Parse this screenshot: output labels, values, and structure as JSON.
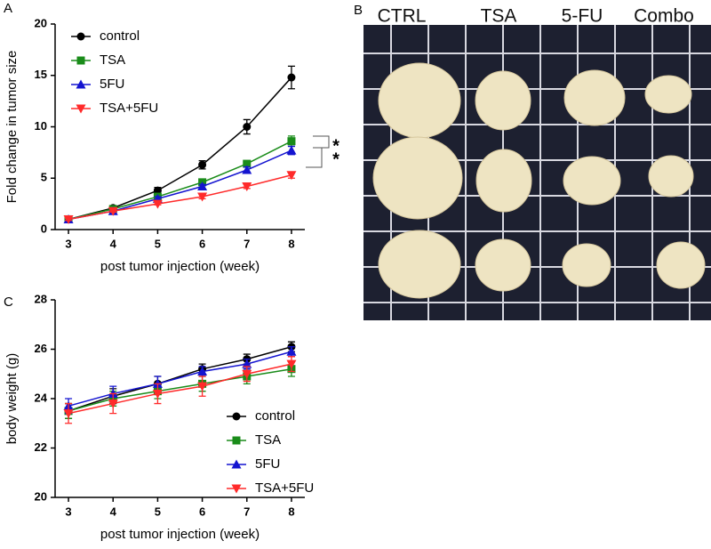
{
  "panel_labels": [
    "A",
    "B",
    "C"
  ],
  "photo_labels": [
    "CTRL",
    "TSA",
    "5-FU",
    "Combo"
  ],
  "chart_data": [
    {
      "type": "line",
      "xlabel": "post tumor injection (week)",
      "ylabel": "Fold change in tumor size",
      "x": [
        3,
        4,
        5,
        6,
        7,
        8
      ],
      "xlim": [
        2.7,
        8.3
      ],
      "xticks": [
        3,
        4,
        5,
        6,
        7,
        8
      ],
      "ylim": [
        0,
        20
      ],
      "yticks": [
        0,
        5,
        10,
        15,
        20
      ],
      "legend": "upper left",
      "annotations": [
        "*",
        "*"
      ],
      "series": [
        {
          "name": "control",
          "color": "#000000",
          "marker": "circle",
          "values": [
            1,
            2.1,
            3.8,
            6.3,
            10.0,
            14.8
          ],
          "errors": [
            0.1,
            0.2,
            0.3,
            0.4,
            0.7,
            1.1
          ]
        },
        {
          "name": "TSA",
          "color": "#1a8c1a",
          "marker": "square",
          "values": [
            1,
            2.0,
            3.2,
            4.6,
            6.4,
            8.6
          ],
          "errors": [
            0.1,
            0.1,
            0.2,
            0.3,
            0.3,
            0.5
          ]
        },
        {
          "name": "5FU",
          "color": "#1414d0",
          "marker": "triangle-up",
          "values": [
            1,
            1.8,
            3.0,
            4.2,
            5.8,
            7.7
          ],
          "errors": [
            0.1,
            0.1,
            0.2,
            0.2,
            0.3,
            0.4
          ]
        },
        {
          "name": "TSA+5FU",
          "color": "#ff2a2a",
          "marker": "triangle-down",
          "values": [
            1,
            1.8,
            2.5,
            3.2,
            4.2,
            5.3
          ],
          "errors": [
            0.1,
            0.1,
            0.1,
            0.2,
            0.2,
            0.3
          ]
        }
      ]
    },
    {
      "type": "line",
      "xlabel": "post tumor injection (week)",
      "ylabel": "body weight (g)",
      "x": [
        3,
        4,
        5,
        6,
        7,
        8
      ],
      "xlim": [
        2.7,
        8.3
      ],
      "xticks": [
        3,
        4,
        5,
        6,
        7,
        8
      ],
      "ylim": [
        20,
        28
      ],
      "yticks": [
        20,
        22,
        24,
        26,
        28
      ],
      "legend": "lower right",
      "series": [
        {
          "name": "control",
          "color": "#000000",
          "marker": "circle",
          "values": [
            23.5,
            24.1,
            24.6,
            25.2,
            25.6,
            26.1
          ],
          "errors": [
            0.3,
            0.3,
            0.3,
            0.2,
            0.2,
            0.2
          ]
        },
        {
          "name": "TSA",
          "color": "#1a8c1a",
          "marker": "square",
          "values": [
            23.5,
            24.0,
            24.3,
            24.6,
            24.9,
            25.2
          ],
          "errors": [
            0.3,
            0.3,
            0.3,
            0.3,
            0.3,
            0.3
          ]
        },
        {
          "name": "5FU",
          "color": "#1414d0",
          "marker": "triangle-up",
          "values": [
            23.7,
            24.2,
            24.6,
            25.1,
            25.4,
            25.9
          ],
          "errors": [
            0.3,
            0.3,
            0.3,
            0.2,
            0.2,
            0.2
          ]
        },
        {
          "name": "TSA+5FU",
          "color": "#ff2a2a",
          "marker": "triangle-down",
          "values": [
            23.4,
            23.8,
            24.2,
            24.5,
            25.0,
            25.4
          ],
          "errors": [
            0.4,
            0.4,
            0.4,
            0.4,
            0.3,
            0.3
          ]
        }
      ]
    }
  ]
}
